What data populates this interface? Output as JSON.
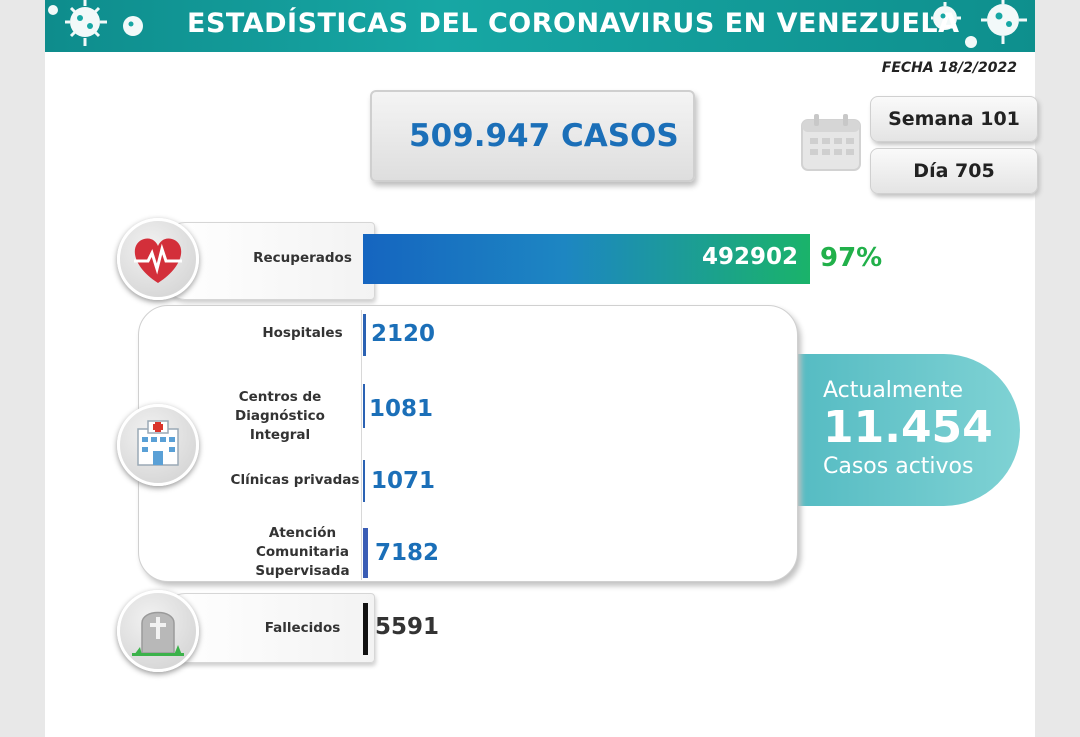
{
  "header": {
    "title": "ESTADÍSTICAS DEL CORONAVIRUS EN VENEZUELA"
  },
  "date": "FECHA 18/2/2022",
  "total": "509.947 CASOS",
  "week": "Semana 101",
  "day": "Día 705",
  "colors": {
    "header": "#1aa3a0",
    "accent_blue": "#1b6fb8",
    "recovered_green": "#21b04a",
    "active_teal": "#5bbfc6"
  },
  "chart_data": {
    "type": "bar",
    "categories": [
      "Recuperados",
      "Hospitales",
      "Centros de Diagnóstico Integral",
      "Clínicas privadas",
      "Atención Comunitaria Supervisada",
      "Fallecidos"
    ],
    "values": [
      492902,
      2120,
      1081,
      1071,
      7182,
      5591
    ],
    "total_cases": 509947,
    "recovered_percent": 97
  },
  "rows": {
    "recovered": {
      "label": "Recuperados",
      "value": "492902",
      "percent": "97%",
      "icon": "heart-pulse-icon"
    },
    "hospitals": {
      "label": "Hospitales",
      "value": "2120"
    },
    "cdi": {
      "label_line1": "Centros de",
      "label_line2": "Diagnóstico Integral",
      "value": "1081"
    },
    "clinics": {
      "label": "Clínicas privadas",
      "value": "1071"
    },
    "community": {
      "label_line1": "Atención",
      "label_line2": "Comunitaria",
      "label_line3": "Supervisada",
      "value": "7182"
    },
    "deceased": {
      "label": "Fallecidos",
      "value": "5591",
      "icon": "tombstone-icon"
    },
    "active_icon": "hospital-building-icon"
  },
  "active": {
    "top": "Actualmente",
    "value": "11.454",
    "bottom": "Casos activos"
  }
}
